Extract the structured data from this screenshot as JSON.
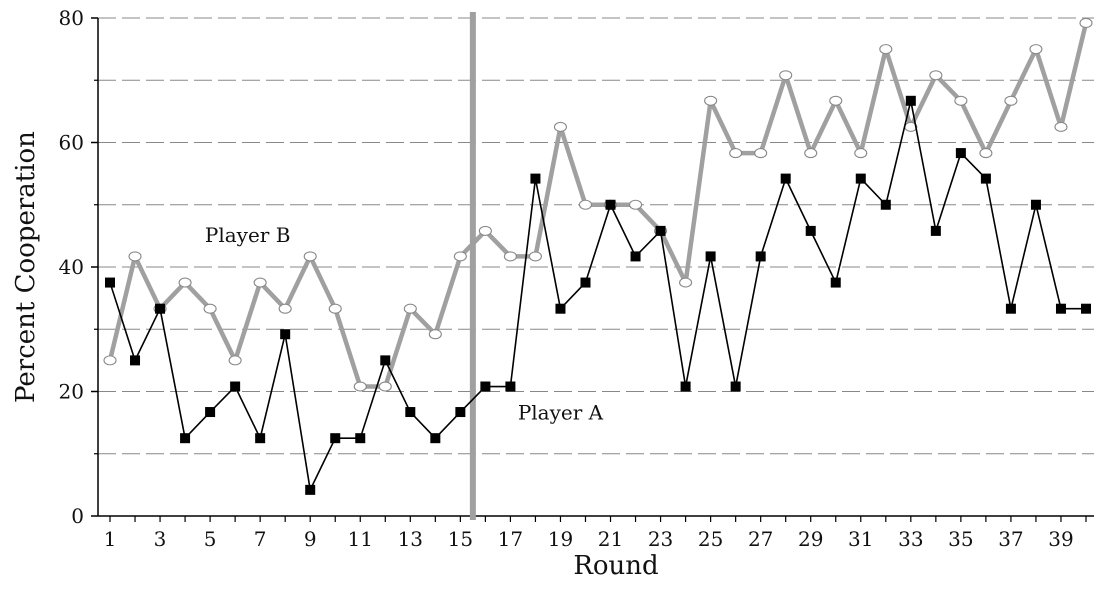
{
  "chart_data": {
    "type": "line",
    "title": "",
    "xlabel": "Round",
    "ylabel": "Percent Cooperation",
    "xlim": [
      1,
      40
    ],
    "ylim": [
      0,
      80
    ],
    "y_ticks": [
      0,
      20,
      40,
      60,
      80
    ],
    "x_tick_labels": [
      1,
      3,
      5,
      7,
      9,
      11,
      13,
      15,
      17,
      19,
      21,
      23,
      25,
      27,
      29,
      31,
      33,
      35,
      37,
      39
    ],
    "grid": "horizontal dashed every 10",
    "vertical_marker_x": 15.5,
    "colors": {
      "player_b": "#a0a0a0",
      "player_a": "#000000",
      "marker_line": "#a0a0a0",
      "grid": "#888888"
    },
    "x": [
      1,
      2,
      3,
      4,
      5,
      6,
      7,
      8,
      9,
      10,
      11,
      12,
      13,
      14,
      15,
      16,
      17,
      18,
      19,
      20,
      21,
      22,
      23,
      24,
      25,
      26,
      27,
      28,
      29,
      30,
      31,
      32,
      33,
      34,
      35,
      36,
      37,
      38,
      39,
      40
    ],
    "series": [
      {
        "name": "Player B",
        "marker": "open-circle",
        "values": [
          25,
          41.7,
          33.3,
          37.5,
          33.3,
          25,
          37.5,
          33.3,
          41.7,
          33.3,
          20.8,
          20.8,
          33.3,
          29.2,
          41.7,
          45.8,
          41.7,
          41.7,
          62.5,
          50,
          50,
          50,
          45.8,
          37.5,
          66.7,
          58.3,
          58.3,
          70.8,
          58.3,
          66.7,
          58.3,
          75,
          62.5,
          70.8,
          66.7,
          58.3,
          66.7,
          75,
          62.5,
          79.2
        ]
      },
      {
        "name": "Player A",
        "marker": "filled-square",
        "values": [
          37.5,
          25,
          33.3,
          12.5,
          16.7,
          20.8,
          12.5,
          29.2,
          4.2,
          12.5,
          12.5,
          25,
          16.7,
          12.5,
          16.7,
          20.8,
          20.8,
          54.2,
          33.3,
          37.5,
          50,
          41.7,
          45.8,
          20.8,
          41.7,
          20.8,
          41.7,
          54.2,
          45.8,
          37.5,
          54.2,
          50,
          66.7,
          45.8,
          58.3,
          54.2,
          33.3,
          50,
          33.3,
          33.3
        ]
      }
    ],
    "annotations": [
      {
        "text": "Player B",
        "at_x": 6.5,
        "at_y": 44
      },
      {
        "text": "Player A",
        "at_x": 19,
        "at_y": 15.5
      }
    ]
  }
}
